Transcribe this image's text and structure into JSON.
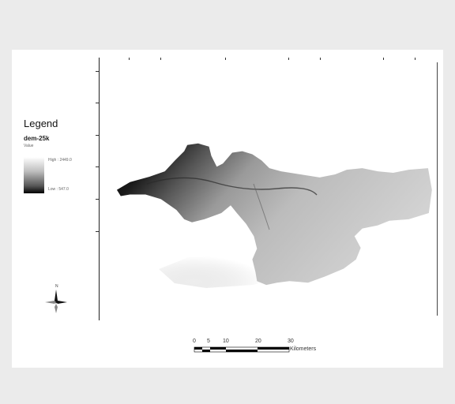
{
  "legend": {
    "title": "Legend",
    "layer_name": "dem-25k",
    "field": "Value",
    "high": "High : 2449.0",
    "low": "Low : 547.0"
  },
  "scale_bar": {
    "ticks": [
      "0",
      "5",
      "10",
      "20",
      "30"
    ],
    "unit": "Kilometers"
  },
  "colors": {
    "page_bg": "#ebebeb",
    "sheet_bg": "#ffffff",
    "dem_high": "#ffffff",
    "dem_low": "#000000"
  },
  "icons": [
    "north-arrow-icon"
  ]
}
